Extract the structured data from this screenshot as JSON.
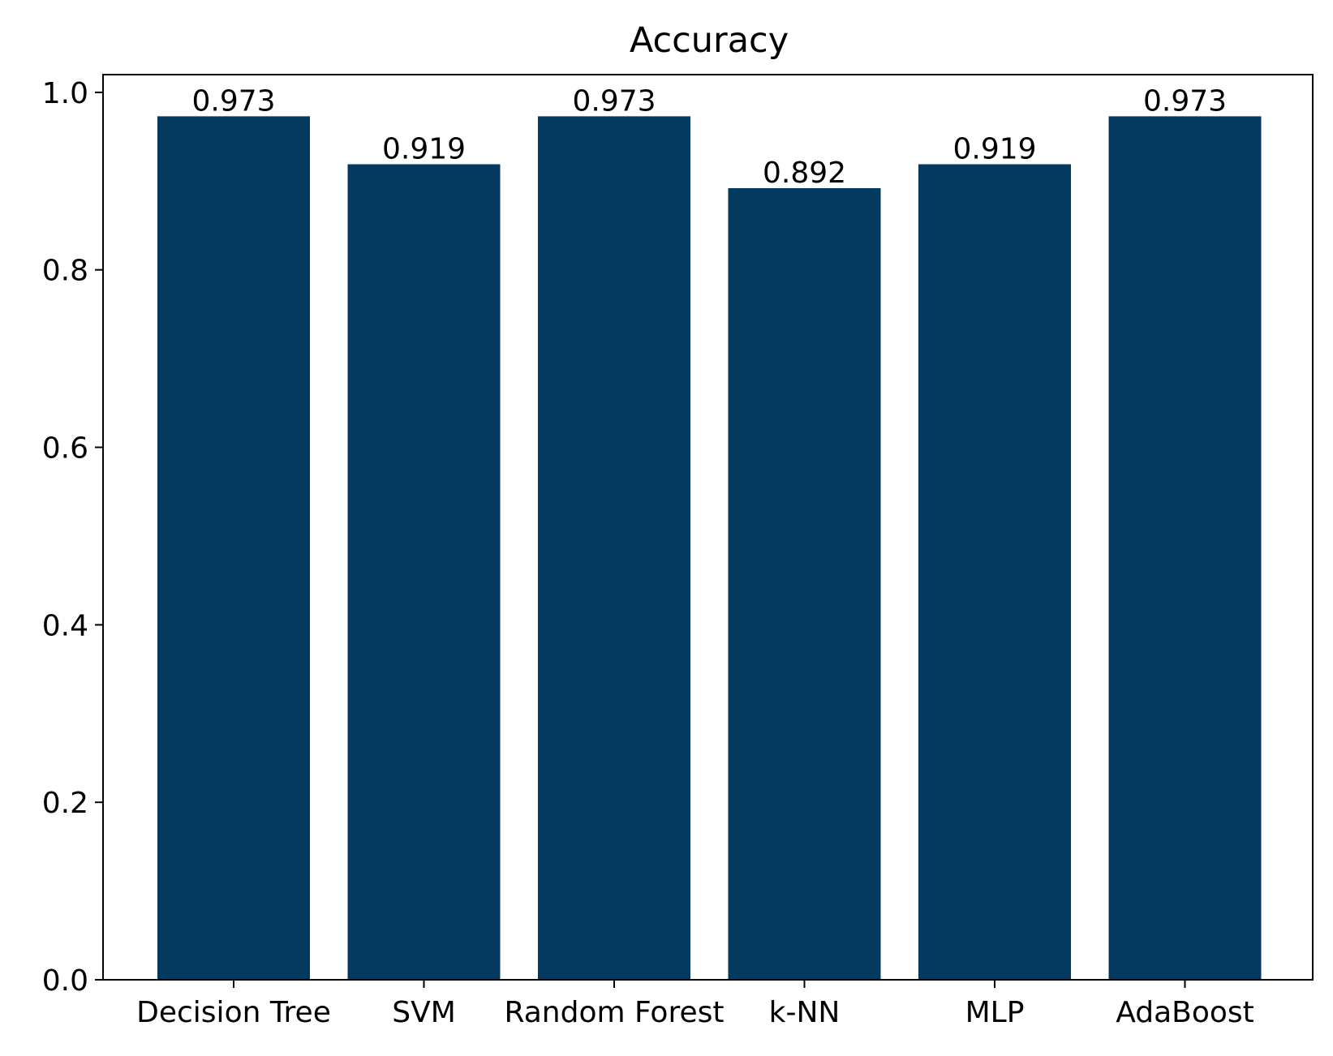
{
  "chart_data": {
    "type": "bar",
    "title": "Accuracy",
    "xlabel": "",
    "ylabel": "",
    "categories": [
      "Decision Tree",
      "SVM",
      "Random Forest",
      "k-NN",
      "MLP",
      "AdaBoost"
    ],
    "values": [
      0.973,
      0.919,
      0.973,
      0.892,
      0.919,
      0.973
    ],
    "value_labels": [
      "0.973",
      "0.919",
      "0.973",
      "0.892",
      "0.919",
      "0.973"
    ],
    "ylim": [
      0,
      1.02
    ],
    "yticks": [
      0.0,
      0.2,
      0.4,
      0.6,
      0.8,
      1.0
    ],
    "ytick_labels": [
      "0.0",
      "0.2",
      "0.4",
      "0.6",
      "0.8",
      "1.0"
    ],
    "grid": false,
    "legend": "none",
    "bar_color": "#03395e"
  }
}
